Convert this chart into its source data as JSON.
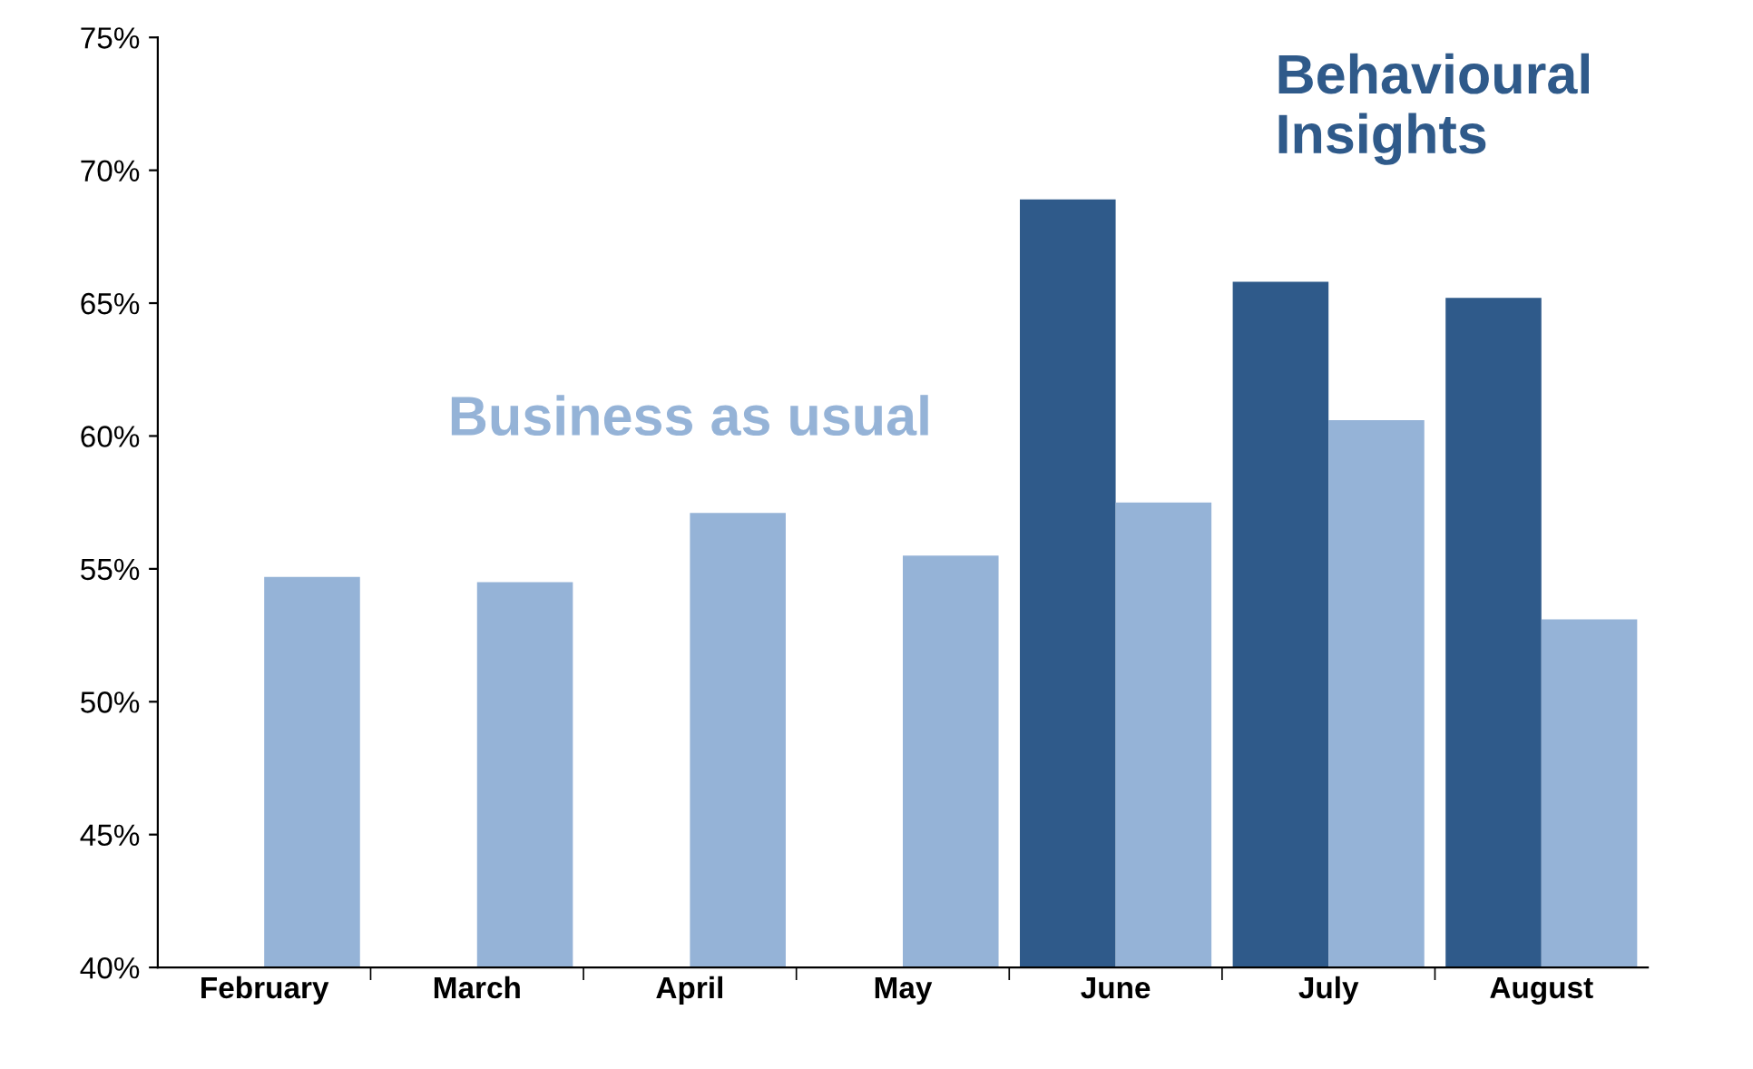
{
  "chart_data": {
    "type": "bar",
    "categories": [
      "February",
      "March",
      "April",
      "May",
      "June",
      "July",
      "August"
    ],
    "series": [
      {
        "name": "Behavioural Insights",
        "color": "#2f5a8a",
        "values": [
          null,
          null,
          null,
          null,
          68.9,
          65.8,
          65.2
        ]
      },
      {
        "name": "Business as usual",
        "color": "#95b3d7",
        "values": [
          54.7,
          54.5,
          57.1,
          55.5,
          57.5,
          60.6,
          53.1
        ]
      }
    ],
    "ylim": [
      40,
      75
    ],
    "yticks": [
      {
        "value": 40,
        "label": "40%"
      },
      {
        "value": 45,
        "label": "45%"
      },
      {
        "value": 50,
        "label": "50%"
      },
      {
        "value": 55,
        "label": "55%"
      },
      {
        "value": 60,
        "label": "60%"
      },
      {
        "value": 65,
        "label": "65%"
      },
      {
        "value": 70,
        "label": "70%"
      },
      {
        "value": 75,
        "label": "75%"
      }
    ],
    "grid": false,
    "legend": false
  }
}
